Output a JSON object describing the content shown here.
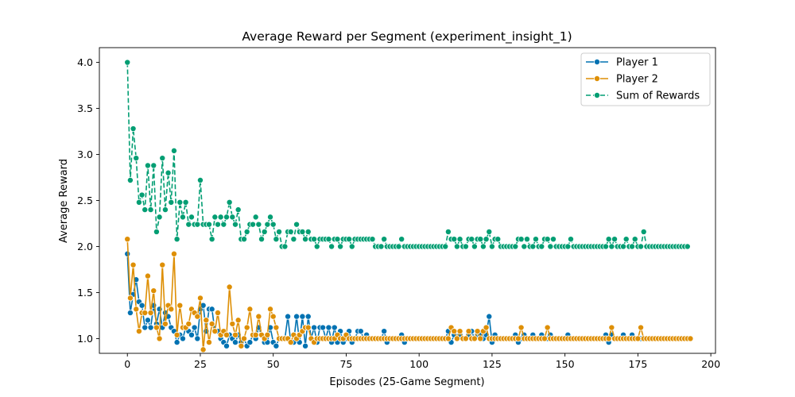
{
  "chart_data": {
    "type": "line",
    "title": "Average Reward per Segment (experiment_insight_1)",
    "xlabel": "Episodes (25-Game Segment)",
    "ylabel": "Average Reward",
    "xlim": [
      -9.6,
      201.6
    ],
    "ylim": [
      0.84,
      4.16
    ],
    "xticks": [
      0,
      25,
      50,
      75,
      100,
      125,
      150,
      175,
      200
    ],
    "yticks": [
      1.0,
      1.5,
      2.0,
      2.5,
      3.0,
      3.5,
      4.0
    ],
    "xtick_labels": [
      "0",
      "25",
      "50",
      "75",
      "100",
      "125",
      "150",
      "175",
      "200"
    ],
    "ytick_labels": [
      "1.0",
      "1.5",
      "2.0",
      "2.5",
      "3.0",
      "3.5",
      "4.0"
    ],
    "grid": false,
    "legend_position": "top-right",
    "series": [
      {
        "name": "Player 1",
        "color": "#0072b2",
        "linestyle": "solid",
        "values": [
          1.92,
          1.28,
          1.48,
          1.64,
          1.4,
          1.36,
          1.12,
          1.2,
          1.12,
          1.36,
          1.16,
          1.32,
          1.12,
          1.28,
          1.24,
          1.12,
          1.08,
          0.96,
          1.04,
          1.0,
          1.12,
          1.08,
          1.04,
          1.12,
          1.0,
          1.32,
          1.36,
          1.08,
          1.32,
          1.32,
          1.08,
          1.08,
          1.0,
          0.96,
          0.92,
          1.04,
          1.0,
          0.96,
          1.04,
          0.96,
          1.0,
          0.92,
          0.96,
          1.04,
          1.0,
          1.12,
          1.04,
          0.96,
          0.96,
          1.12,
          0.96,
          0.92,
          1.0,
          1.0,
          1.0,
          1.24,
          0.96,
          0.96,
          1.24,
          0.96,
          1.24,
          0.92,
          1.24,
          1.0,
          1.12,
          0.96,
          1.12,
          1.12,
          1.0,
          1.12,
          0.96,
          1.12,
          0.96,
          1.08,
          0.96,
          1.0,
          1.08,
          0.96,
          1.0,
          1.08,
          1.08,
          1.0,
          1.04,
          1.0,
          1.0,
          1.0,
          1.0,
          1.0,
          1.08,
          0.96,
          1.0,
          1.0,
          1.0,
          1.0,
          1.04,
          0.96,
          1.0,
          1.0,
          1.0,
          1.0,
          1.0,
          1.0,
          1.0,
          1.0,
          1.0,
          1.0,
          1.0,
          1.0,
          1.0,
          1.0,
          1.08,
          0.96,
          1.04,
          1.0,
          1.04,
          1.0,
          1.0,
          1.04,
          1.08,
          1.0,
          1.04,
          1.04,
          1.0,
          1.04,
          1.24,
          0.96,
          1.04,
          1.0,
          1.0,
          1.0,
          1.0,
          1.0,
          1.0,
          1.04,
          0.96,
          1.0,
          1.04,
          1.0,
          1.0,
          1.04,
          1.0,
          1.0,
          1.04,
          1.0,
          1.0,
          1.04,
          1.0,
          1.0,
          1.0,
          1.0,
          1.0,
          1.04,
          1.0,
          1.0,
          1.0,
          1.0,
          1.0,
          1.0,
          1.0,
          1.0,
          1.0,
          1.0,
          1.0,
          1.0,
          1.04,
          0.96,
          1.04,
          1.0,
          1.0,
          1.0,
          1.04,
          1.0,
          1.0,
          1.04,
          1.0,
          1.0,
          1.0,
          1.0,
          1.0,
          1.0,
          1.0,
          1.0,
          1.0,
          1.0,
          1.0,
          1.0,
          1.0,
          1.0,
          1.0,
          1.0,
          1.0,
          1.0,
          1.0,
          1.0
        ]
      },
      {
        "name": "Player 2",
        "color": "#de8f05",
        "linestyle": "solid",
        "values": [
          2.08,
          1.44,
          1.8,
          1.32,
          1.08,
          1.28,
          1.28,
          1.68,
          1.28,
          1.52,
          1.12,
          1.0,
          1.8,
          1.16,
          1.36,
          1.32,
          1.92,
          1.04,
          1.36,
          1.12,
          1.12,
          1.16,
          1.32,
          1.28,
          1.24,
          1.44,
          0.88,
          1.2,
          0.96,
          1.16,
          1.08,
          1.28,
          1.04,
          1.08,
          1.04,
          1.56,
          1.16,
          1.04,
          1.2,
          0.92,
          1.0,
          1.12,
          1.32,
          1.04,
          1.04,
          1.24,
          1.04,
          1.0,
          1.04,
          1.32,
          1.24,
          1.12,
          1.0,
          1.0,
          1.0,
          1.0,
          0.96,
          1.04,
          1.0,
          1.04,
          1.08,
          1.12,
          1.12,
          1.0,
          0.96,
          1.0,
          1.0,
          1.0,
          1.0,
          1.0,
          1.0,
          1.0,
          1.04,
          1.0,
          1.0,
          1.04,
          1.0,
          1.0,
          1.0,
          1.0,
          1.0,
          1.0,
          1.0,
          1.0,
          1.0,
          1.0,
          1.0,
          1.0,
          1.0,
          1.0,
          1.0,
          1.0,
          1.0,
          1.0,
          1.0,
          1.0,
          1.0,
          1.0,
          1.0,
          1.0,
          1.0,
          1.0,
          1.0,
          1.0,
          1.0,
          1.0,
          1.0,
          1.0,
          1.0,
          1.0,
          1.0,
          1.12,
          1.08,
          1.0,
          1.08,
          1.0,
          1.0,
          1.08,
          1.0,
          1.0,
          1.08,
          1.0,
          1.08,
          1.12,
          1.0,
          1.0,
          1.0,
          1.0,
          1.0,
          1.0,
          1.0,
          1.0,
          1.0,
          1.0,
          1.0,
          1.12,
          1.0,
          1.0,
          1.0,
          1.0,
          1.0,
          1.0,
          1.0,
          1.0,
          1.12,
          1.0,
          1.0,
          1.0,
          1.0,
          1.0,
          1.0,
          1.0,
          1.0,
          1.0,
          1.0,
          1.0,
          1.0,
          1.0,
          1.0,
          1.0,
          1.0,
          1.0,
          1.0,
          1.0,
          1.0,
          1.0,
          1.12,
          1.0,
          1.0,
          1.0,
          1.0,
          1.0,
          1.0,
          1.0,
          1.0,
          1.0,
          1.12,
          1.0,
          1.0,
          1.0,
          1.0,
          1.0,
          1.0,
          1.0,
          1.0,
          1.0,
          1.0,
          1.0,
          1.0,
          1.0,
          1.0,
          1.0,
          1.0,
          1.0
        ]
      },
      {
        "name": "Sum of Rewards",
        "color": "#029e73",
        "linestyle": "dashed",
        "values": [
          4.0,
          2.72,
          3.28,
          2.96,
          2.48,
          2.56,
          2.4,
          2.88,
          2.4,
          2.88,
          2.16,
          2.32,
          2.96,
          2.4,
          2.8,
          2.48,
          3.04,
          2.08,
          2.48,
          2.32,
          2.48,
          2.24,
          2.32,
          2.24,
          2.24,
          2.72,
          2.24,
          2.24,
          2.24,
          2.08,
          2.32,
          2.24,
          2.32,
          2.24,
          2.32,
          2.48,
          2.32,
          2.24,
          2.4,
          2.08,
          2.08,
          2.16,
          2.24,
          2.24,
          2.32,
          2.24,
          2.08,
          2.16,
          2.24,
          2.32,
          2.24,
          2.08,
          2.16,
          2.0,
          2.0,
          2.16,
          2.16,
          2.08,
          2.24,
          2.16,
          2.16,
          2.08,
          2.16,
          2.08,
          2.08,
          2.0,
          2.08,
          2.08,
          2.08,
          2.08,
          2.0,
          2.08,
          2.08,
          2.0,
          2.08,
          2.08,
          2.08,
          2.0,
          2.08,
          2.08,
          2.08,
          2.08,
          2.08,
          2.08,
          2.08,
          2.0,
          2.0,
          2.0,
          2.08,
          2.0,
          2.0,
          2.0,
          2.0,
          2.0,
          2.08,
          2.0,
          2.0,
          2.0,
          2.0,
          2.0,
          2.0,
          2.0,
          2.0,
          2.0,
          2.0,
          2.0,
          2.0,
          2.0,
          2.0,
          2.0,
          2.16,
          2.08,
          2.08,
          2.0,
          2.08,
          2.0,
          2.0,
          2.08,
          2.08,
          2.0,
          2.08,
          2.08,
          2.0,
          2.08,
          2.16,
          2.0,
          2.08,
          2.08,
          2.0,
          2.0,
          2.0,
          2.0,
          2.0,
          2.0,
          2.08,
          2.08,
          2.0,
          2.08,
          2.0,
          2.0,
          2.08,
          2.0,
          2.0,
          2.08,
          2.08,
          2.0,
          2.08,
          2.0,
          2.0,
          2.0,
          2.0,
          2.0,
          2.08,
          2.0,
          2.0,
          2.0,
          2.0,
          2.0,
          2.0,
          2.0,
          2.0,
          2.0,
          2.0,
          2.0,
          2.0,
          2.08,
          2.0,
          2.08,
          2.0,
          2.0,
          2.0,
          2.08,
          2.0,
          2.0,
          2.08,
          2.0,
          2.0,
          2.16,
          2.0,
          2.0,
          2.0,
          2.0,
          2.0,
          2.0,
          2.0,
          2.0,
          2.0,
          2.0,
          2.0,
          2.0,
          2.0,
          2.0,
          2.0
        ]
      }
    ]
  }
}
